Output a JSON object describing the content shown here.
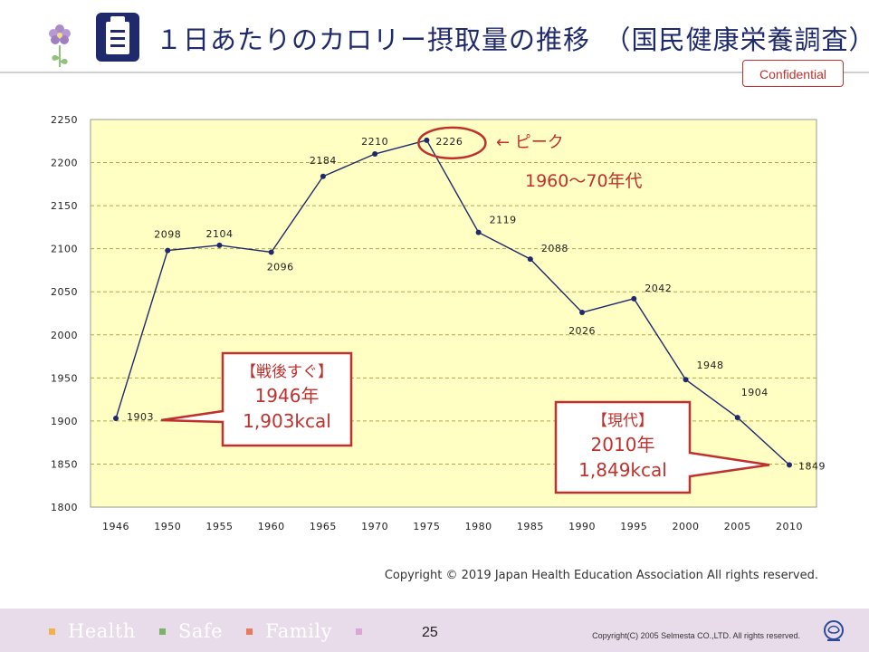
{
  "header": {
    "title": "１日あたりのカロリー摂取量の推移　（国民健康栄養調査）",
    "confidential_label": "Confidential",
    "clipboard_icon": "clipboard-icon",
    "logo_icon": "flower-logo-icon"
  },
  "chart_data": {
    "type": "line",
    "x": [
      "1946",
      "1950",
      "1955",
      "1960",
      "1965",
      "1970",
      "1975",
      "1980",
      "1985",
      "1990",
      "1995",
      "2000",
      "2005",
      "2010"
    ],
    "values": [
      1903,
      2098,
      2104,
      2096,
      2184,
      2210,
      2226,
      2119,
      2088,
      2026,
      2042,
      1948,
      1904,
      1849
    ],
    "ylim": [
      1800,
      2250
    ],
    "yticks": [
      1800,
      1850,
      1900,
      1950,
      2000,
      2050,
      2100,
      2150,
      2200,
      2250
    ],
    "grid": true,
    "plot_background": "#ffffc4",
    "series_color": "#1f2a6d",
    "annotations": {
      "peak_arrow": "← ピーク",
      "peak_era": "1960～70年代",
      "postwar": [
        "【戦後すぐ】",
        "1946年",
        "1,903kcal"
      ],
      "present": [
        "【現代】",
        "2010年",
        "1,849kcal"
      ]
    },
    "annotation_color": "#c0302c"
  },
  "copyright": "Copyright © 2019 Japan Health Education Association All rights reserved.",
  "footer": {
    "items": [
      {
        "label": "Health",
        "color": "#f2b24a"
      },
      {
        "label": "Safe",
        "color": "#7bb36a"
      },
      {
        "label": "Family",
        "color": "#e87c5a"
      },
      {
        "label": "",
        "color": "#d9a6d6"
      }
    ],
    "page_number": "25",
    "company_copyright": "Copyright(C) 2005 Selmesta CO.,LTD.  All rights reserved."
  }
}
